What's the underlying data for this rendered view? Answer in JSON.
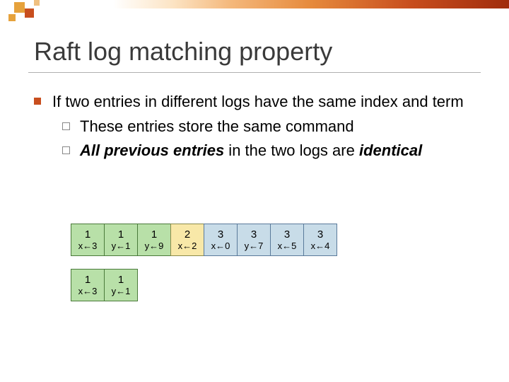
{
  "title": "Raft log matching property",
  "bullets": {
    "main": "If two entries in different logs have the same index and term",
    "sub1": "These entries store the same command",
    "sub2_prefix": "All previous entries",
    "sub2_mid": " in the two logs are ",
    "sub2_suffix": "identical"
  },
  "logs": {
    "row1": [
      {
        "term": "1",
        "cmd": "x←3",
        "color": "c-green"
      },
      {
        "term": "1",
        "cmd": "y←1",
        "color": "c-green"
      },
      {
        "term": "1",
        "cmd": "y←9",
        "color": "c-green"
      },
      {
        "term": "2",
        "cmd": "x←2",
        "color": "c-yellow"
      },
      {
        "term": "3",
        "cmd": "x←0",
        "color": "c-blue"
      },
      {
        "term": "3",
        "cmd": "y←7",
        "color": "c-blue"
      },
      {
        "term": "3",
        "cmd": "x←5",
        "color": "c-blue"
      },
      {
        "term": "3",
        "cmd": "x←4",
        "color": "c-blue"
      }
    ],
    "row2": [
      {
        "term": "1",
        "cmd": "x←3",
        "color": "c-green"
      },
      {
        "term": "1",
        "cmd": "y←1",
        "color": "c-green"
      }
    ]
  },
  "colors": {
    "accent": "#c84e1e",
    "green": "#b8e0a8",
    "yellow": "#f8e8a8",
    "blue": "#c8dce8"
  }
}
